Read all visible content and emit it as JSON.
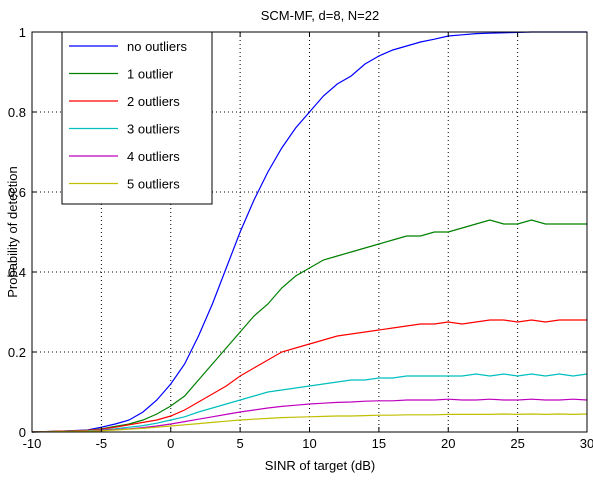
{
  "chart_data": {
    "type": "line",
    "title": "SCM-MF, d=8, N=22",
    "xlabel": "SINR of target (dB)",
    "ylabel": "Probability of detection",
    "xlim": [
      -10,
      30
    ],
    "ylim": [
      0,
      1
    ],
    "xticks": [
      -10,
      -5,
      0,
      5,
      10,
      15,
      20,
      25,
      30
    ],
    "yticks": [
      0,
      0.2,
      0.4,
      0.6,
      0.8,
      1
    ],
    "xtick_labels": [
      "-10",
      "-5",
      "0",
      "5",
      "10",
      "15",
      "20",
      "25",
      "30"
    ],
    "ytick_labels": [
      "0",
      "0.2",
      "0.4",
      "0.6",
      "0.8",
      "1"
    ],
    "grid": true,
    "legend_position": "top-left",
    "x": [
      -10,
      -8,
      -6,
      -5,
      -4,
      -3,
      -2,
      -1,
      0,
      1,
      2,
      3,
      4,
      5,
      6,
      7,
      8,
      9,
      10,
      11,
      12,
      13,
      14,
      15,
      16,
      17,
      18,
      19,
      20,
      21,
      22,
      23,
      24,
      25,
      26,
      27,
      28,
      29,
      30
    ],
    "series": [
      {
        "name": "no outliers",
        "color": "#0000ff",
        "values": [
          0,
          0.002,
          0.005,
          0.012,
          0.02,
          0.03,
          0.05,
          0.08,
          0.12,
          0.17,
          0.24,
          0.32,
          0.41,
          0.5,
          0.58,
          0.65,
          0.71,
          0.76,
          0.8,
          0.84,
          0.87,
          0.89,
          0.92,
          0.94,
          0.955,
          0.965,
          0.975,
          0.982,
          0.99,
          0.993,
          0.996,
          0.997,
          0.998,
          0.999,
          1.0,
          1.0,
          1.0,
          1.0,
          1.0
        ]
      },
      {
        "name": "1 outlier",
        "color": "#008000",
        "values": [
          0,
          0.002,
          0.004,
          0.008,
          0.014,
          0.02,
          0.03,
          0.045,
          0.065,
          0.09,
          0.13,
          0.17,
          0.21,
          0.25,
          0.29,
          0.32,
          0.36,
          0.39,
          0.41,
          0.43,
          0.44,
          0.45,
          0.46,
          0.47,
          0.48,
          0.49,
          0.49,
          0.5,
          0.5,
          0.51,
          0.52,
          0.53,
          0.52,
          0.52,
          0.53,
          0.52,
          0.52,
          0.52,
          0.52
        ]
      },
      {
        "name": "2 outliers",
        "color": "#ff0000",
        "values": [
          0,
          0.002,
          0.004,
          0.007,
          0.012,
          0.018,
          0.024,
          0.03,
          0.04,
          0.055,
          0.075,
          0.095,
          0.115,
          0.14,
          0.16,
          0.18,
          0.2,
          0.21,
          0.22,
          0.23,
          0.24,
          0.245,
          0.25,
          0.255,
          0.26,
          0.265,
          0.27,
          0.27,
          0.275,
          0.27,
          0.275,
          0.28,
          0.28,
          0.275,
          0.28,
          0.275,
          0.28,
          0.28,
          0.28
        ]
      },
      {
        "name": "3 outliers",
        "color": "#00bfbf",
        "values": [
          0,
          0.001,
          0.003,
          0.005,
          0.008,
          0.012,
          0.016,
          0.022,
          0.03,
          0.038,
          0.05,
          0.06,
          0.07,
          0.08,
          0.09,
          0.1,
          0.105,
          0.11,
          0.115,
          0.12,
          0.125,
          0.13,
          0.13,
          0.135,
          0.135,
          0.14,
          0.14,
          0.14,
          0.14,
          0.14,
          0.145,
          0.14,
          0.145,
          0.14,
          0.145,
          0.14,
          0.145,
          0.14,
          0.145
        ]
      },
      {
        "name": "4 outliers",
        "color": "#bf00bf",
        "values": [
          0,
          0.001,
          0.002,
          0.004,
          0.006,
          0.008,
          0.011,
          0.015,
          0.02,
          0.026,
          0.032,
          0.038,
          0.044,
          0.05,
          0.055,
          0.06,
          0.064,
          0.067,
          0.07,
          0.072,
          0.074,
          0.075,
          0.077,
          0.078,
          0.078,
          0.08,
          0.08,
          0.08,
          0.082,
          0.08,
          0.08,
          0.082,
          0.08,
          0.08,
          0.082,
          0.08,
          0.08,
          0.082,
          0.08
        ]
      },
      {
        "name": "5 outliers",
        "color": "#bfbf00",
        "values": [
          0,
          0.001,
          0.002,
          0.003,
          0.005,
          0.007,
          0.009,
          0.012,
          0.015,
          0.018,
          0.021,
          0.024,
          0.027,
          0.03,
          0.032,
          0.034,
          0.036,
          0.037,
          0.038,
          0.039,
          0.04,
          0.04,
          0.041,
          0.042,
          0.042,
          0.043,
          0.043,
          0.043,
          0.044,
          0.044,
          0.044,
          0.044,
          0.045,
          0.044,
          0.045,
          0.044,
          0.045,
          0.044,
          0.045
        ]
      }
    ]
  }
}
